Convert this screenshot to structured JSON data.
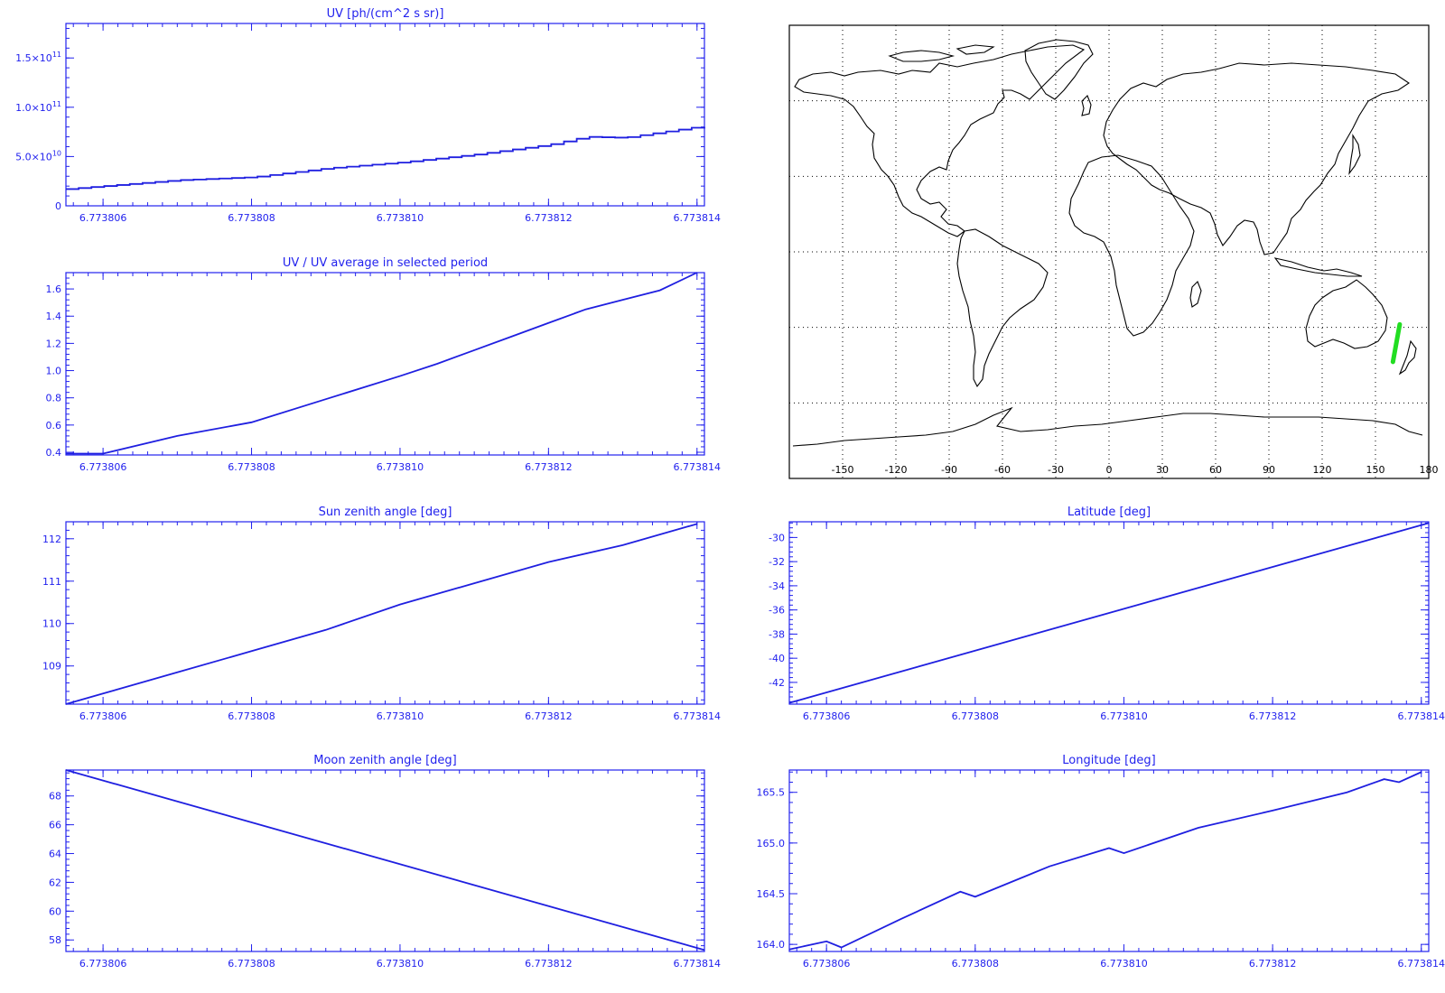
{
  "colors": {
    "axis": "#2222ee",
    "line": "#1f1fe0",
    "map_frame": "#000000",
    "coastline": "#000000",
    "grid_dots": "#000000",
    "track": "#22dd22"
  },
  "chart_data": [
    {
      "id": "uv",
      "type": "line",
      "style": "step",
      "title": "UV [ph/(cm^2 s sr)]",
      "xlim": [
        6.7738055,
        6.7738141
      ],
      "ylim": [
        0,
        185000000000
      ],
      "xticks": [
        6.773806,
        6.773808,
        6.77381,
        6.773812,
        6.773814
      ],
      "xtick_labels": [
        "6.773806",
        "6.773808",
        "6.773810",
        "6.773812",
        "6.773814"
      ],
      "yticks": [
        0,
        50000000000,
        100000000000,
        150000000000
      ],
      "ytick_labels": [
        "0",
        "5.0×10^10",
        "1.0×10^11",
        "1.5×10^11"
      ],
      "x": [
        6.7738055,
        6.773807,
        6.773808,
        6.773809,
        6.77381,
        6.773811,
        6.773812,
        6.7738125,
        6.773813,
        6.773814
      ],
      "y": [
        17000000000,
        26000000000,
        29000000000,
        38000000000,
        44000000000,
        52000000000,
        62000000000,
        70000000000,
        69000000000,
        80000000000
      ]
    },
    {
      "id": "uv_ratio",
      "type": "line",
      "title": "UV / UV average in selected period",
      "xlim": [
        6.7738055,
        6.7738141
      ],
      "ylim": [
        0.38,
        1.72
      ],
      "xticks": [
        6.773806,
        6.773808,
        6.77381,
        6.773812,
        6.773814
      ],
      "xtick_labels": [
        "6.773806",
        "6.773808",
        "6.773810",
        "6.773812",
        "6.773814"
      ],
      "yticks": [
        0.4,
        0.6,
        0.8,
        1.0,
        1.2,
        1.4,
        1.6
      ],
      "ytick_labels": [
        "0.4",
        "0.6",
        "0.8",
        "1.0",
        "1.2",
        "1.4",
        "1.6"
      ],
      "x": [
        6.7738055,
        6.773806,
        6.773807,
        6.773808,
        6.773809,
        6.77381,
        6.7738105,
        6.773811,
        6.7738115,
        6.773812,
        6.7738125,
        6.773813,
        6.7738135,
        6.773814
      ],
      "y": [
        0.39,
        0.39,
        0.52,
        0.62,
        0.79,
        0.96,
        1.05,
        1.15,
        1.25,
        1.35,
        1.45,
        1.52,
        1.59,
        1.72
      ]
    },
    {
      "id": "sun_zenith",
      "type": "line",
      "title": "Sun zenith angle [deg]",
      "xlim": [
        6.7738055,
        6.7738141
      ],
      "ylim": [
        108.1,
        112.4
      ],
      "xticks": [
        6.773806,
        6.773808,
        6.77381,
        6.773812,
        6.773814
      ],
      "xtick_labels": [
        "6.773806",
        "6.773808",
        "6.773810",
        "6.773812",
        "6.773814"
      ],
      "yticks": [
        109,
        110,
        111,
        112
      ],
      "ytick_labels": [
        "109",
        "110",
        "111",
        "112"
      ],
      "x": [
        6.7738055,
        6.773806,
        6.773807,
        6.773808,
        6.773809,
        6.77381,
        6.773811,
        6.773812,
        6.773813,
        6.773814
      ],
      "y": [
        108.1,
        108.35,
        108.85,
        109.35,
        109.85,
        110.45,
        110.95,
        111.45,
        111.85,
        112.35
      ]
    },
    {
      "id": "latitude",
      "type": "line",
      "title": "Latitude [deg]",
      "xlim": [
        6.7738055,
        6.7738141
      ],
      "ylim": [
        -43.8,
        -28.7
      ],
      "xticks": [
        6.773806,
        6.773808,
        6.77381,
        6.773812,
        6.773814
      ],
      "xtick_labels": [
        "6.773806",
        "6.773808",
        "6.773810",
        "6.773812",
        "6.773814"
      ],
      "yticks": [
        -42,
        -40,
        -38,
        -36,
        -34,
        -32,
        -30
      ],
      "ytick_labels": [
        "-42",
        "-40",
        "-38",
        "-36",
        "-34",
        "-32",
        "-30"
      ],
      "x": [
        6.7738055,
        6.7738141
      ],
      "y": [
        -43.7,
        -28.8
      ]
    },
    {
      "id": "moon_zenith",
      "type": "line",
      "title": "Moon zenith angle [deg]",
      "xlim": [
        6.7738055,
        6.7738141
      ],
      "ylim": [
        57.2,
        69.8
      ],
      "xticks": [
        6.773806,
        6.773808,
        6.77381,
        6.773812,
        6.773814
      ],
      "xtick_labels": [
        "6.773806",
        "6.773808",
        "6.773810",
        "6.773812",
        "6.773814"
      ],
      "yticks": [
        58,
        60,
        62,
        64,
        66,
        68
      ],
      "ytick_labels": [
        "58",
        "60",
        "62",
        "64",
        "66",
        "68"
      ],
      "x": [
        6.7738055,
        6.7738141
      ],
      "y": [
        69.8,
        57.3
      ]
    },
    {
      "id": "longitude",
      "type": "line",
      "title": "Longitude [deg]",
      "xlim": [
        6.7738055,
        6.7738141
      ],
      "ylim": [
        163.93,
        165.72
      ],
      "xticks": [
        6.773806,
        6.773808,
        6.77381,
        6.773812,
        6.773814
      ],
      "xtick_labels": [
        "6.773806",
        "6.773808",
        "6.773810",
        "6.773812",
        "6.773814"
      ],
      "yticks": [
        164.0,
        164.5,
        165.0,
        165.5
      ],
      "ytick_labels": [
        "164.0",
        "164.5",
        "165.0",
        "165.5"
      ],
      "x": [
        6.7738055,
        6.773806,
        6.7738062,
        6.773807,
        6.7738078,
        6.773808,
        6.773809,
        6.7738098,
        6.77381,
        6.773811,
        6.773812,
        6.773813,
        6.7738135,
        6.7738137,
        6.773814
      ],
      "y": [
        163.95,
        164.03,
        163.97,
        164.25,
        164.52,
        164.47,
        164.77,
        164.95,
        164.9,
        165.15,
        165.32,
        165.5,
        165.63,
        165.6,
        165.7
      ]
    }
  ],
  "map": {
    "lon_ticks": [
      -150,
      -120,
      -90,
      -60,
      -30,
      0,
      30,
      60,
      90,
      120,
      150,
      180
    ],
    "lon_tick_labels": [
      "-150",
      "-120",
      "-90",
      "-60",
      "-30",
      "0",
      "30",
      "60",
      "90",
      "120",
      "150",
      "180"
    ],
    "lat_grid": [
      -60,
      -30,
      0,
      30,
      60
    ],
    "lon_range": [
      -180,
      180
    ],
    "lat_range": [
      -90,
      90
    ],
    "track": {
      "lon": [
        163.9,
        165.7
      ],
      "lat": [
        -43.7,
        -28.8
      ]
    }
  }
}
